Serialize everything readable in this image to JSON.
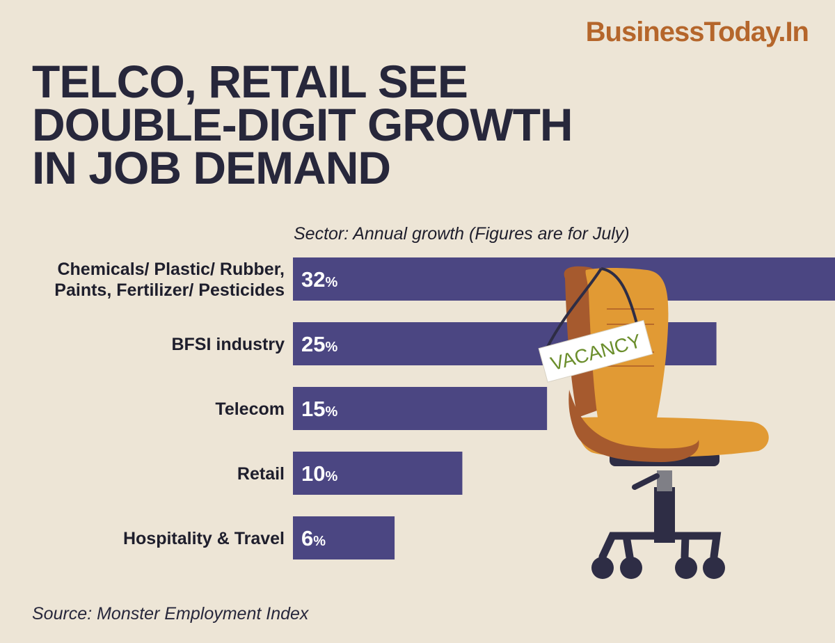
{
  "brand": {
    "logo_text": "BusinessToday.In"
  },
  "header": {
    "title_lines": [
      "TELCO, RETAIL SEE",
      "DOUBLE-DIGIT GROWTH",
      "IN JOB DEMAND"
    ],
    "subtitle": "Sector: Annual growth  (Figures are for July)"
  },
  "footer": {
    "source": "Source: Monster Employment Index"
  },
  "illustration": {
    "sign_text": "VACANCY"
  },
  "colors": {
    "background": "#ede5d6",
    "bar": "#4b4682",
    "title": "#27273b",
    "brand": "#b5662b",
    "chair": "#e19a34",
    "chair_shadow": "#a65a2e"
  },
  "chart_data": {
    "type": "bar",
    "orientation": "horizontal",
    "categories": [
      [
        "Chemicals/ Plastic/ Rubber,",
        "Paints, Fertilizer/ Pesticides"
      ],
      [
        "BFSI industry"
      ],
      [
        "Telecom"
      ],
      [
        "Retail"
      ],
      [
        "Hospitality & Travel"
      ]
    ],
    "values": [
      32,
      25,
      15,
      10,
      6
    ],
    "value_suffix": "%",
    "xlabel": "",
    "ylabel": ""
  }
}
